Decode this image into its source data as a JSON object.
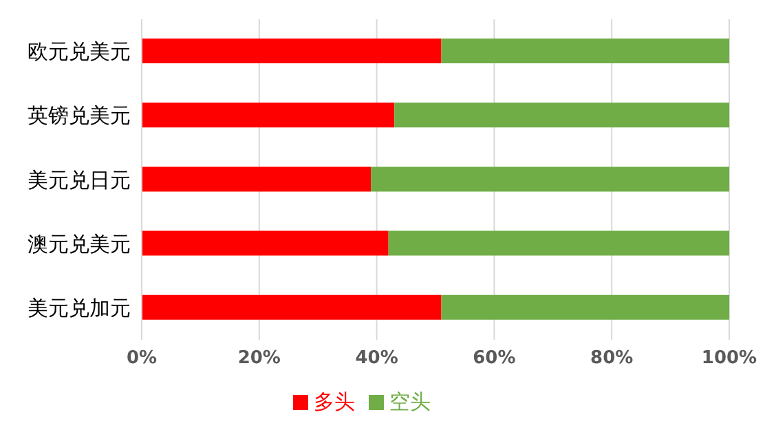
{
  "chart_data": {
    "type": "bar",
    "orientation": "horizontal",
    "stacked": true,
    "categories": [
      "欧元兑美元",
      "英镑兑美元",
      "美元兑日元",
      "澳元兑美元",
      "美元兑加元"
    ],
    "series": [
      {
        "name": "多头",
        "color": "#ff0000",
        "values": [
          51,
          43,
          39,
          42,
          51
        ]
      },
      {
        "name": "空头",
        "color": "#70ad47",
        "values": [
          49,
          57,
          61,
          58,
          49
        ]
      }
    ],
    "xlim": [
      0,
      100
    ],
    "xticks": [
      {
        "value": 0,
        "label": "0%"
      },
      {
        "value": 20,
        "label": "20%"
      },
      {
        "value": 40,
        "label": "40%"
      },
      {
        "value": 60,
        "label": "60%"
      },
      {
        "value": 80,
        "label": "80%"
      },
      {
        "value": 100,
        "label": "100%"
      }
    ],
    "grid": "x",
    "legend": "bottom"
  }
}
